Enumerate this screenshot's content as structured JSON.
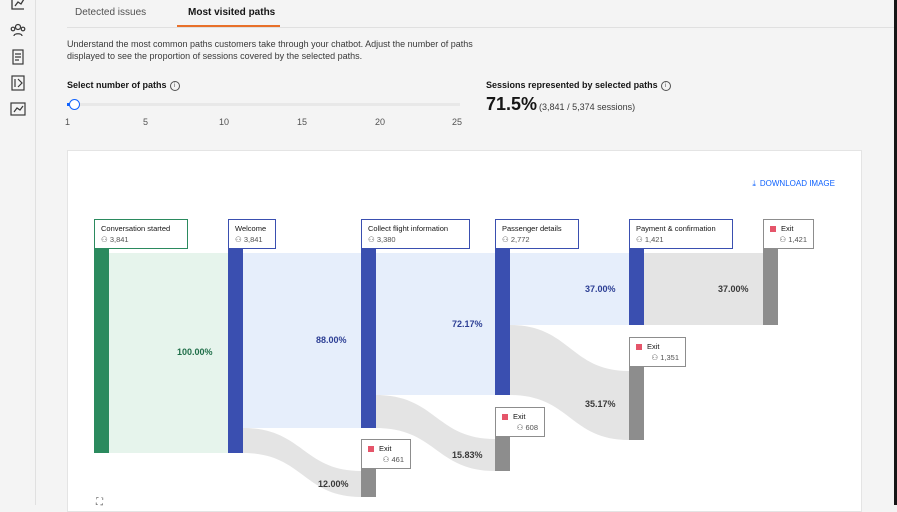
{
  "tabs": [
    {
      "label": "Detected issues",
      "active": false
    },
    {
      "label": "Most visited paths",
      "active": true
    }
  ],
  "description": "Understand the most common paths customers take through your chatbot. Adjust the number of paths displayed to see the proportion of sessions covered by the selected paths.",
  "slider": {
    "label": "Select number of paths",
    "value": 1,
    "ticks": [
      "1",
      "5",
      "10",
      "15",
      "20",
      "25"
    ]
  },
  "sessions": {
    "label": "Sessions represented by selected paths",
    "percent": "71.5%",
    "detail": "(3,841 / 5,374 sessions)"
  },
  "download_label": "DOWNLOAD IMAGE",
  "colors": {
    "start": "#2b8a5e",
    "step": "#3a4fb0",
    "exit": "#8d8d8d",
    "accent_tab": "#e8702a",
    "link": "#0f62fe"
  },
  "sankey": {
    "nodes": [
      {
        "name": "Conversation started",
        "count": "3,841"
      },
      {
        "name": "Welcome",
        "count": "3,841"
      },
      {
        "name": "Collect flight information",
        "count": "3,380"
      },
      {
        "name": "Passenger details",
        "count": "2,772"
      },
      {
        "name": "Payment & confirmation",
        "count": "1,421"
      },
      {
        "name": "Exit",
        "count": "1,421"
      },
      {
        "name": "Exit",
        "count": "1,351"
      },
      {
        "name": "Exit",
        "count": "608"
      },
      {
        "name": "Exit",
        "count": "461"
      }
    ],
    "flows": [
      {
        "label": "100.00%"
      },
      {
        "label": "88.00%"
      },
      {
        "label": "12.00%"
      },
      {
        "label": "72.17%"
      },
      {
        "label": "15.83%"
      },
      {
        "label": "37.00%"
      },
      {
        "label": "35.17%"
      },
      {
        "label": "37.00%"
      }
    ]
  }
}
